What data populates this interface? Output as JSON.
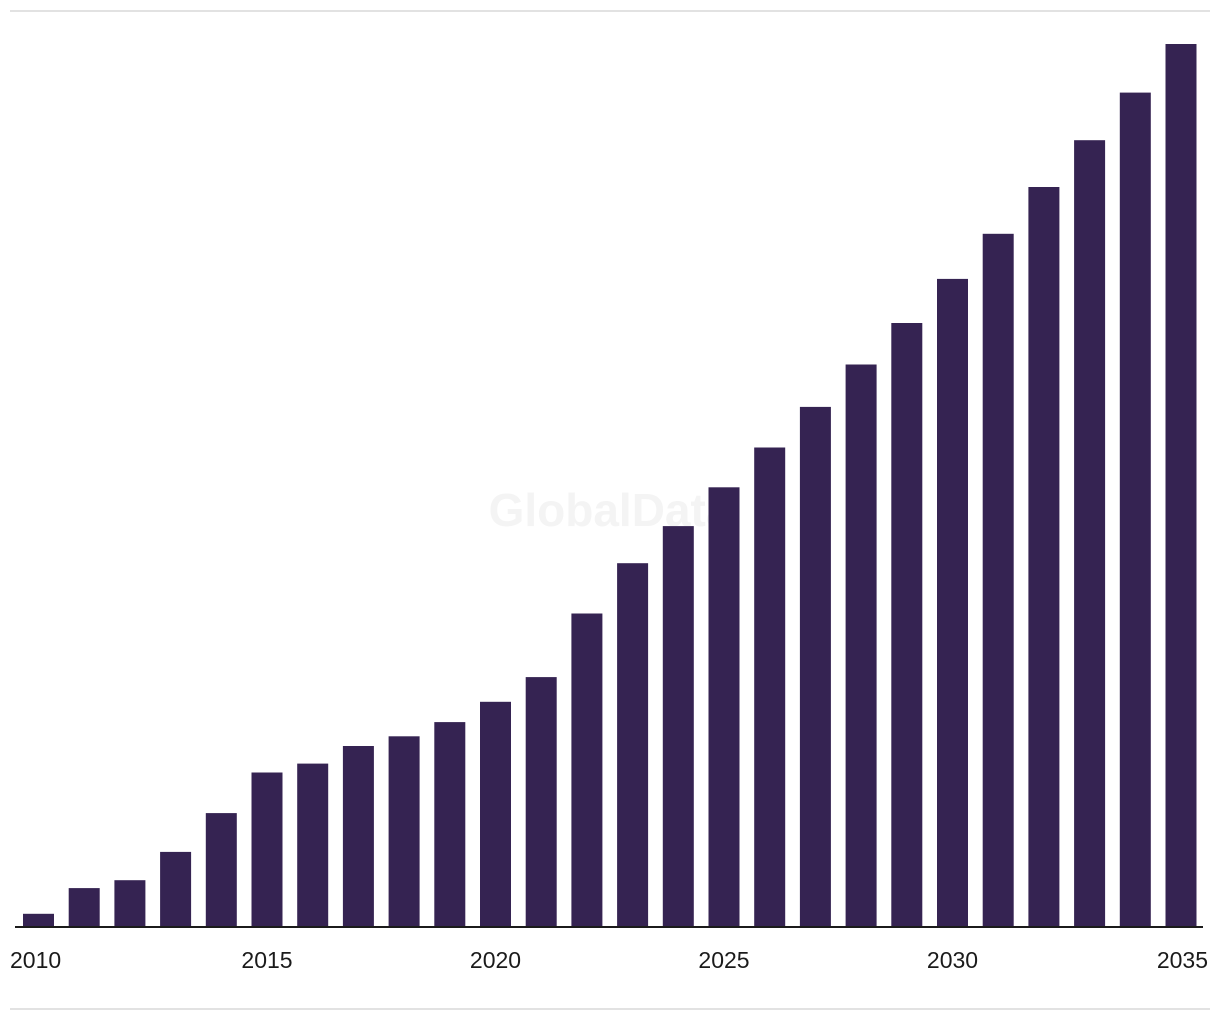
{
  "brand": {
    "watermark": "GlobalData",
    "bar_color": "#352352",
    "axis_color": "#1b1b1b",
    "watermark_color": "#f4f4f4"
  },
  "chart_data": {
    "type": "bar",
    "categories": [
      2010,
      2011,
      2012,
      2013,
      2014,
      2015,
      2016,
      2017,
      2018,
      2019,
      2020,
      2021,
      2022,
      2023,
      2024,
      2025,
      2026,
      2027,
      2028,
      2029,
      2030,
      2031,
      2032,
      2033,
      2034,
      2035
    ],
    "values": [
      1.5,
      4.4,
      5.3,
      8.5,
      12.9,
      17.5,
      18.5,
      20.5,
      21.6,
      23.2,
      25.5,
      28.3,
      35.5,
      41.2,
      45.4,
      49.8,
      54.3,
      58.9,
      63.7,
      68.4,
      73.4,
      78.5,
      83.8,
      89.1,
      94.5,
      100
    ],
    "x_tick_labels": [
      "2010",
      "2015",
      "2020",
      "2025",
      "2030",
      "2035"
    ],
    "title": "",
    "xlabel": "",
    "ylabel": "",
    "ylim": [
      0,
      100
    ],
    "grid": false,
    "legend": "none"
  }
}
